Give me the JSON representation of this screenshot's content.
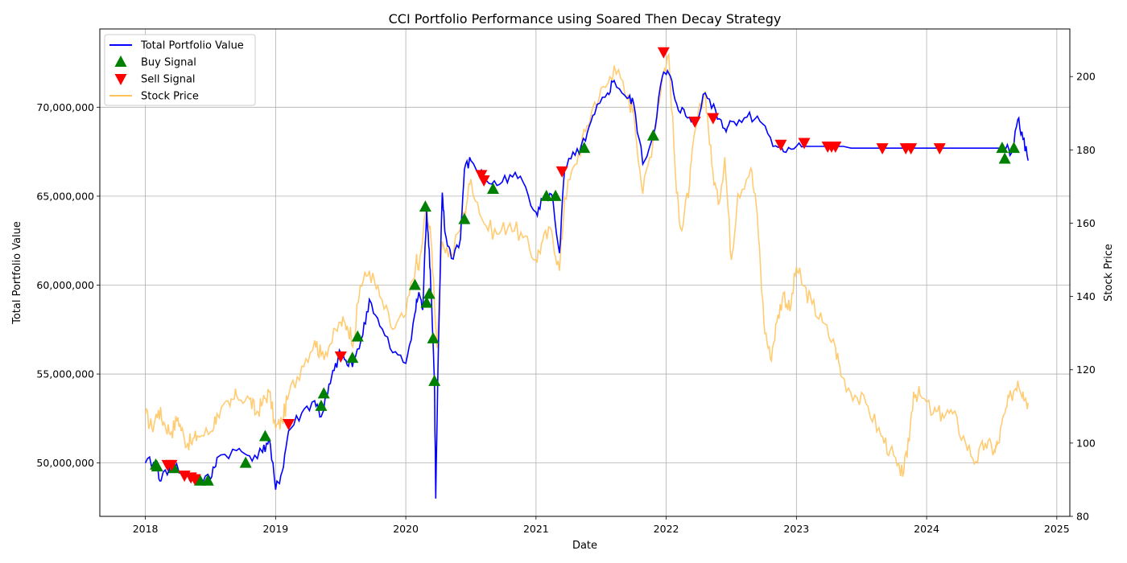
{
  "chart_data": {
    "type": "line",
    "title": "CCI Portfolio Performance using Soared Then Decay Strategy",
    "xlabel": "Date",
    "ylabel_left": "Total Portfolio Value",
    "ylabel_right": "Stock Price",
    "x_ticks": [
      "2018",
      "2019",
      "2020",
      "2021",
      "2022",
      "2023",
      "2024",
      "2025"
    ],
    "x_range": [
      2017.65,
      2025.1
    ],
    "y_left_ticks": [
      "50,000,000",
      "55,000,000",
      "60,000,000",
      "65,000,000",
      "70,000,000"
    ],
    "y_left_tick_values": [
      50000000,
      55000000,
      60000000,
      65000000,
      70000000
    ],
    "y_left_range": [
      47000000,
      74400000
    ],
    "y_right_ticks": [
      "80",
      "100",
      "120",
      "140",
      "160",
      "180",
      "200"
    ],
    "y_right_tick_values": [
      80,
      100,
      120,
      140,
      160,
      180,
      200
    ],
    "y_right_range": [
      80,
      213
    ],
    "grid": true,
    "legend_position": "top-left",
    "legend": [
      {
        "label": "Total Portfolio Value",
        "kind": "line",
        "color": "#0000ff"
      },
      {
        "label": "Buy Signal",
        "kind": "triangle-up",
        "color": "#008000"
      },
      {
        "label": "Sell Signal",
        "kind": "triangle-down",
        "color": "#ff0000"
      },
      {
        "label": "Stock Price",
        "kind": "line",
        "color": "#ffc35a"
      }
    ],
    "series": [
      {
        "name": "Total Portfolio Value",
        "axis": "left",
        "color": "#0000ff",
        "points": [
          [
            2018.0,
            50000000
          ],
          [
            2018.08,
            50000000
          ],
          [
            2018.12,
            49000000
          ],
          [
            2018.2,
            50000000
          ],
          [
            2018.3,
            49300000
          ],
          [
            2018.4,
            49000000
          ],
          [
            2018.5,
            49100000
          ],
          [
            2018.55,
            50300000
          ],
          [
            2018.7,
            50700000
          ],
          [
            2018.8,
            50400000
          ],
          [
            2018.9,
            50600000
          ],
          [
            2018.95,
            51400000
          ],
          [
            2019.0,
            48500000
          ],
          [
            2019.05,
            49500000
          ],
          [
            2019.1,
            51800000
          ],
          [
            2019.2,
            52800000
          ],
          [
            2019.3,
            53500000
          ],
          [
            2019.35,
            52600000
          ],
          [
            2019.4,
            53900000
          ],
          [
            2019.45,
            55200000
          ],
          [
            2019.5,
            56200000
          ],
          [
            2019.55,
            55500000
          ],
          [
            2019.6,
            55800000
          ],
          [
            2019.67,
            57200000
          ],
          [
            2019.72,
            59200000
          ],
          [
            2019.8,
            57700000
          ],
          [
            2019.9,
            56200000
          ],
          [
            2020.0,
            55600000
          ],
          [
            2020.07,
            58400000
          ],
          [
            2020.1,
            59600000
          ],
          [
            2020.13,
            58600000
          ],
          [
            2020.16,
            64200000
          ],
          [
            2020.18,
            62000000
          ],
          [
            2020.2,
            58700000
          ],
          [
            2020.22,
            54600000
          ],
          [
            2020.23,
            48000000
          ],
          [
            2020.25,
            56300000
          ],
          [
            2020.28,
            65200000
          ],
          [
            2020.3,
            63000000
          ],
          [
            2020.35,
            61500000
          ],
          [
            2020.42,
            62600000
          ],
          [
            2020.45,
            66500000
          ],
          [
            2020.5,
            67000000
          ],
          [
            2020.6,
            66000000
          ],
          [
            2020.7,
            65600000
          ],
          [
            2020.8,
            66200000
          ],
          [
            2020.9,
            65800000
          ],
          [
            2021.0,
            64100000
          ],
          [
            2021.05,
            64800000
          ],
          [
            2021.12,
            65100000
          ],
          [
            2021.18,
            61800000
          ],
          [
            2021.22,
            66500000
          ],
          [
            2021.3,
            67300000
          ],
          [
            2021.38,
            68100000
          ],
          [
            2021.45,
            69600000
          ],
          [
            2021.55,
            70800000
          ],
          [
            2021.6,
            71500000
          ],
          [
            2021.7,
            70500000
          ],
          [
            2021.75,
            70200000
          ],
          [
            2021.82,
            66800000
          ],
          [
            2021.9,
            68400000
          ],
          [
            2021.97,
            71700000
          ],
          [
            2022.02,
            71900000
          ],
          [
            2022.08,
            70200000
          ],
          [
            2022.15,
            69500000
          ],
          [
            2022.22,
            69200000
          ],
          [
            2022.3,
            70800000
          ],
          [
            2022.38,
            69800000
          ],
          [
            2022.45,
            68800000
          ],
          [
            2022.5,
            69200000
          ],
          [
            2022.6,
            69400000
          ],
          [
            2022.7,
            69500000
          ],
          [
            2022.8,
            68300000
          ],
          [
            2022.9,
            67500000
          ],
          [
            2023.0,
            67800000
          ],
          [
            2023.1,
            68100000
          ],
          [
            2023.3,
            67800000
          ],
          [
            2023.6,
            67700000
          ],
          [
            2024.0,
            67700000
          ],
          [
            2024.5,
            67700000
          ],
          [
            2024.6,
            67700000
          ],
          [
            2024.65,
            67400000
          ],
          [
            2024.7,
            69300000
          ],
          [
            2024.74,
            68200000
          ],
          [
            2024.78,
            67000000
          ]
        ]
      },
      {
        "name": "Stock Price",
        "axis": "right",
        "color": "#ffc35a",
        "points": [
          [
            2018.0,
            108
          ],
          [
            2018.05,
            104
          ],
          [
            2018.1,
            109
          ],
          [
            2018.15,
            105
          ],
          [
            2018.2,
            103
          ],
          [
            2018.25,
            107
          ],
          [
            2018.3,
            101
          ],
          [
            2018.35,
            100
          ],
          [
            2018.4,
            102
          ],
          [
            2018.5,
            103
          ],
          [
            2018.55,
            108
          ],
          [
            2018.65,
            110
          ],
          [
            2018.7,
            113
          ],
          [
            2018.8,
            112
          ],
          [
            2018.85,
            108
          ],
          [
            2018.9,
            111
          ],
          [
            2018.95,
            114
          ],
          [
            2019.0,
            104
          ],
          [
            2019.05,
            106
          ],
          [
            2019.1,
            113
          ],
          [
            2019.2,
            121
          ],
          [
            2019.3,
            128
          ],
          [
            2019.35,
            124
          ],
          [
            2019.42,
            127
          ],
          [
            2019.5,
            133
          ],
          [
            2019.55,
            132
          ],
          [
            2019.6,
            128
          ],
          [
            2019.65,
            143
          ],
          [
            2019.72,
            147
          ],
          [
            2019.8,
            140
          ],
          [
            2019.9,
            131
          ],
          [
            2020.0,
            135
          ],
          [
            2020.08,
            150
          ],
          [
            2020.1,
            147
          ],
          [
            2020.16,
            165
          ],
          [
            2020.2,
            153
          ],
          [
            2020.24,
            126
          ],
          [
            2020.28,
            155
          ],
          [
            2020.35,
            151
          ],
          [
            2020.45,
            163
          ],
          [
            2020.5,
            172
          ],
          [
            2020.6,
            160
          ],
          [
            2020.7,
            157
          ],
          [
            2020.8,
            160
          ],
          [
            2020.9,
            156
          ],
          [
            2021.0,
            150
          ],
          [
            2021.05,
            155
          ],
          [
            2021.12,
            158
          ],
          [
            2021.18,
            147
          ],
          [
            2021.22,
            167
          ],
          [
            2021.3,
            176
          ],
          [
            2021.38,
            185
          ],
          [
            2021.45,
            193
          ],
          [
            2021.55,
            198
          ],
          [
            2021.6,
            203
          ],
          [
            2021.7,
            194
          ],
          [
            2021.75,
            191
          ],
          [
            2021.82,
            168
          ],
          [
            2021.9,
            183
          ],
          [
            2021.97,
            200
          ],
          [
            2022.02,
            206
          ],
          [
            2022.08,
            168
          ],
          [
            2022.12,
            158
          ],
          [
            2022.18,
            171
          ],
          [
            2022.22,
            185
          ],
          [
            2022.3,
            196
          ],
          [
            2022.35,
            176
          ],
          [
            2022.4,
            165
          ],
          [
            2022.45,
            178
          ],
          [
            2022.5,
            150
          ],
          [
            2022.55,
            168
          ],
          [
            2022.65,
            175
          ],
          [
            2022.7,
            162
          ],
          [
            2022.75,
            133
          ],
          [
            2022.8,
            123
          ],
          [
            2022.85,
            133
          ],
          [
            2022.9,
            141
          ],
          [
            2022.95,
            136
          ],
          [
            2023.0,
            148
          ],
          [
            2023.05,
            143
          ],
          [
            2023.12,
            138
          ],
          [
            2023.2,
            133
          ],
          [
            2023.3,
            126
          ],
          [
            2023.35,
            118
          ],
          [
            2023.45,
            113
          ],
          [
            2023.55,
            110
          ],
          [
            2023.65,
            102
          ],
          [
            2023.72,
            98
          ],
          [
            2023.8,
            91
          ],
          [
            2023.85,
            96
          ],
          [
            2023.9,
            114
          ],
          [
            2023.95,
            113
          ],
          [
            2024.05,
            108
          ],
          [
            2024.12,
            108
          ],
          [
            2024.2,
            108
          ],
          [
            2024.3,
            100
          ],
          [
            2024.38,
            95
          ],
          [
            2024.45,
            100
          ],
          [
            2024.52,
            98
          ],
          [
            2024.55,
            100
          ],
          [
            2024.6,
            108
          ],
          [
            2024.65,
            113
          ],
          [
            2024.7,
            117
          ],
          [
            2024.74,
            114
          ],
          [
            2024.78,
            111
          ]
        ]
      }
    ],
    "buy_signals": [
      [
        2018.08,
        49900000
      ],
      [
        2018.09,
        49800000
      ],
      [
        2018.22,
        49700000
      ],
      [
        2018.42,
        49000000
      ],
      [
        2018.48,
        49000000
      ],
      [
        2018.77,
        50000000
      ],
      [
        2018.92,
        51500000
      ],
      [
        2019.35,
        53200000
      ],
      [
        2019.37,
        53900000
      ],
      [
        2019.59,
        55900000
      ],
      [
        2019.63,
        57100000
      ],
      [
        2020.07,
        60000000
      ],
      [
        2020.15,
        64400000
      ],
      [
        2020.16,
        59000000
      ],
      [
        2020.18,
        59500000
      ],
      [
        2020.21,
        57000000
      ],
      [
        2020.22,
        54600000
      ],
      [
        2020.45,
        63700000
      ],
      [
        2020.67,
        65400000
      ],
      [
        2021.08,
        65000000
      ],
      [
        2021.15,
        65000000
      ],
      [
        2021.37,
        67700000
      ],
      [
        2021.9,
        68400000
      ],
      [
        2024.58,
        67700000
      ],
      [
        2024.6,
        67100000
      ],
      [
        2024.67,
        67700000
      ]
    ],
    "sell_signals": [
      [
        2018.17,
        49900000
      ],
      [
        2018.2,
        49900000
      ],
      [
        2018.3,
        49300000
      ],
      [
        2018.35,
        49200000
      ],
      [
        2018.38,
        49100000
      ],
      [
        2019.1,
        52200000
      ],
      [
        2019.5,
        56000000
      ],
      [
        2020.58,
        66200000
      ],
      [
        2020.6,
        65900000
      ],
      [
        2021.2,
        66400000
      ],
      [
        2021.98,
        73100000
      ],
      [
        2022.22,
        69200000
      ],
      [
        2022.36,
        69400000
      ],
      [
        2022.88,
        67900000
      ],
      [
        2023.06,
        68000000
      ],
      [
        2023.24,
        67800000
      ],
      [
        2023.27,
        67800000
      ],
      [
        2023.3,
        67800000
      ],
      [
        2023.66,
        67700000
      ],
      [
        2023.84,
        67700000
      ],
      [
        2023.88,
        67700000
      ],
      [
        2024.1,
        67700000
      ]
    ]
  }
}
